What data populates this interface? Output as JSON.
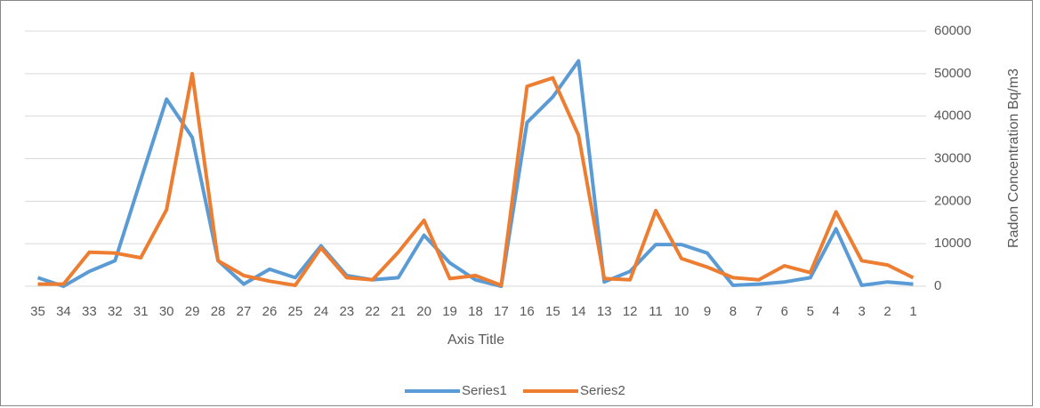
{
  "chart_data": {
    "type": "line",
    "x_label": "Axis Title",
    "y_label": "Radon Concentration Bq/m3",
    "categories": [
      "35",
      "34",
      "33",
      "32",
      "31",
      "30",
      "29",
      "28",
      "27",
      "26",
      "25",
      "24",
      "23",
      "22",
      "21",
      "20",
      "19",
      "18",
      "17",
      "16",
      "15",
      "14",
      "13",
      "12",
      "11",
      "10",
      "9",
      "8",
      "7",
      "6",
      "5",
      "4",
      "3",
      "2",
      "1"
    ],
    "series": [
      {
        "name": "Series1",
        "color": "#5b9bd5",
        "values": [
          2000,
          0,
          3500,
          6000,
          25000,
          44000,
          35000,
          6000,
          500,
          4000,
          2000,
          9500,
          2500,
          1500,
          2000,
          12000,
          5500,
          1500,
          0,
          38500,
          44500,
          53000,
          1000,
          3500,
          9800,
          9800,
          7800,
          200,
          500,
          1000,
          2000,
          13500,
          200,
          1000,
          500
        ]
      },
      {
        "name": "Series2",
        "color": "#ed7d31",
        "values": [
          500,
          500,
          8000,
          7800,
          6700,
          18000,
          50000,
          6000,
          2500,
          1200,
          200,
          9000,
          2000,
          1500,
          8000,
          15500,
          1800,
          2500,
          200,
          47000,
          49000,
          35500,
          1800,
          1500,
          17800,
          6500,
          4500,
          2000,
          1500,
          4800,
          3200,
          17500,
          6000,
          5000,
          2000
        ]
      }
    ],
    "ylim": [
      0,
      60000
    ],
    "yticks": [
      0,
      10000,
      20000,
      30000,
      40000,
      50000,
      60000
    ],
    "grid": true,
    "legend": "bottom"
  }
}
